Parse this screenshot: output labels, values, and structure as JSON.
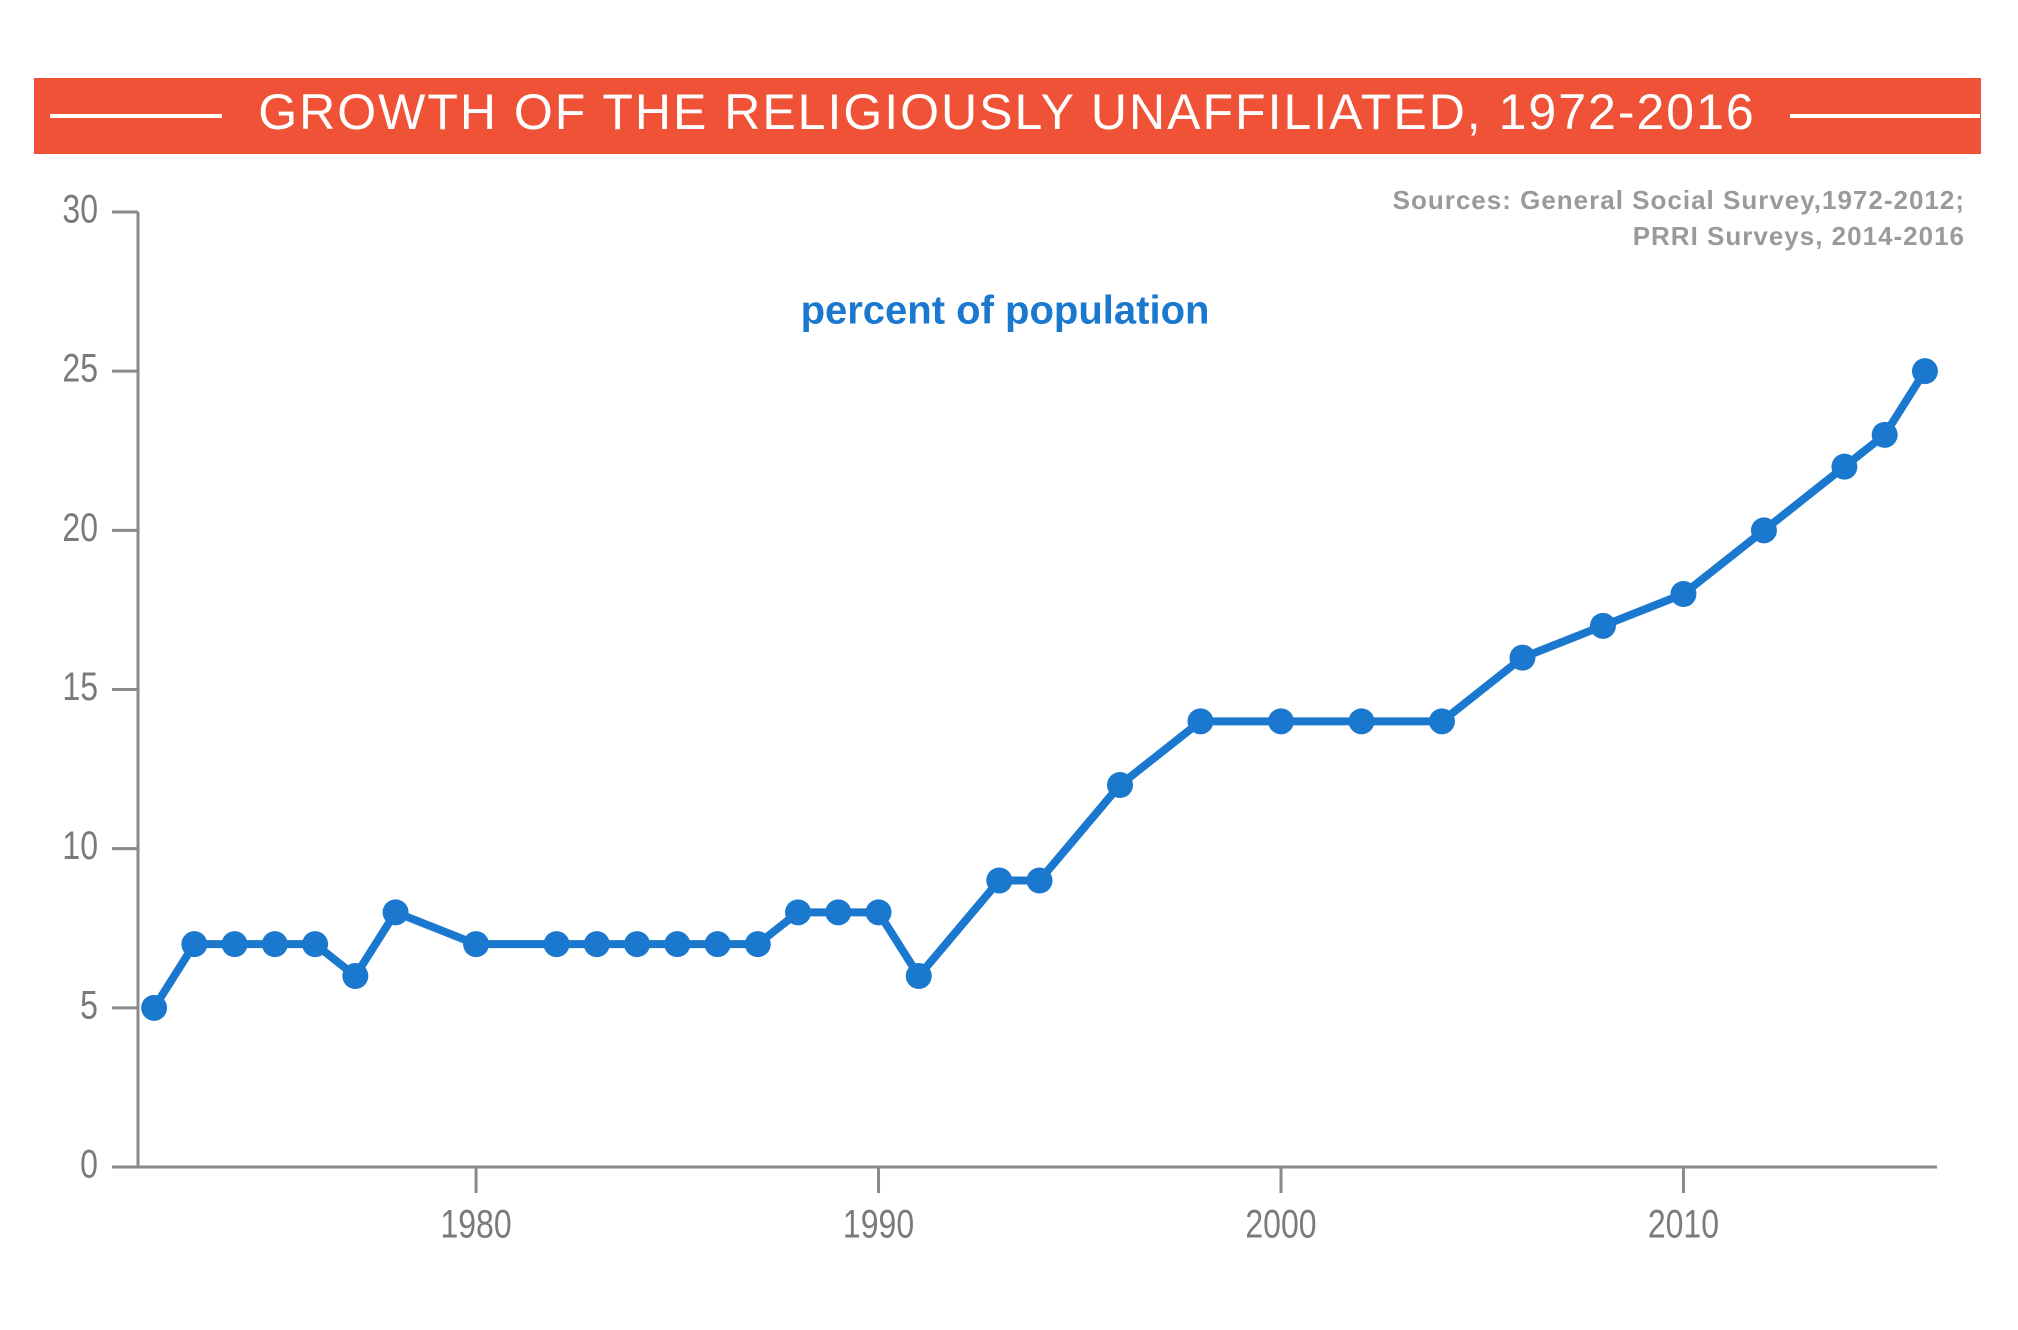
{
  "chart_data": {
    "type": "line",
    "title": "GROWTH OF THE RELIGIOUSLY UNAFFILIATED, 1972-2016",
    "source": [
      "Sources: General Social Survey,1972-2012;",
      "PRRI Surveys, 2014-2016"
    ],
    "annotation": "percent of population",
    "x": [
      1972,
      1973,
      1974,
      1975,
      1976,
      1977,
      1978,
      1980,
      1982,
      1983,
      1984,
      1985,
      1986,
      1987,
      1988,
      1989,
      1990,
      1991,
      1993,
      1994,
      1996,
      1998,
      2000,
      2002,
      2004,
      2006,
      2008,
      2010,
      2012,
      2014,
      2015,
      2016
    ],
    "series": [
      {
        "name": "percent of population",
        "color": "#1a78cf",
        "values": [
          5,
          7,
          7,
          7,
          7,
          6,
          8,
          7,
          7,
          7,
          7,
          7,
          7,
          7,
          8,
          8,
          8,
          6,
          9,
          9,
          12,
          14,
          14,
          14,
          14,
          16,
          17,
          18,
          20,
          22,
          23,
          25
        ]
      }
    ],
    "xlim": [
      1971.6,
      2016.3
    ],
    "xticks": [
      1980,
      1990,
      2000,
      2010
    ],
    "ylim": [
      0,
      30
    ],
    "yticks": [
      0,
      5,
      10,
      15,
      20,
      25,
      30
    ],
    "title_color": "#ef5236",
    "axis_color": "#8a8a8a"
  }
}
